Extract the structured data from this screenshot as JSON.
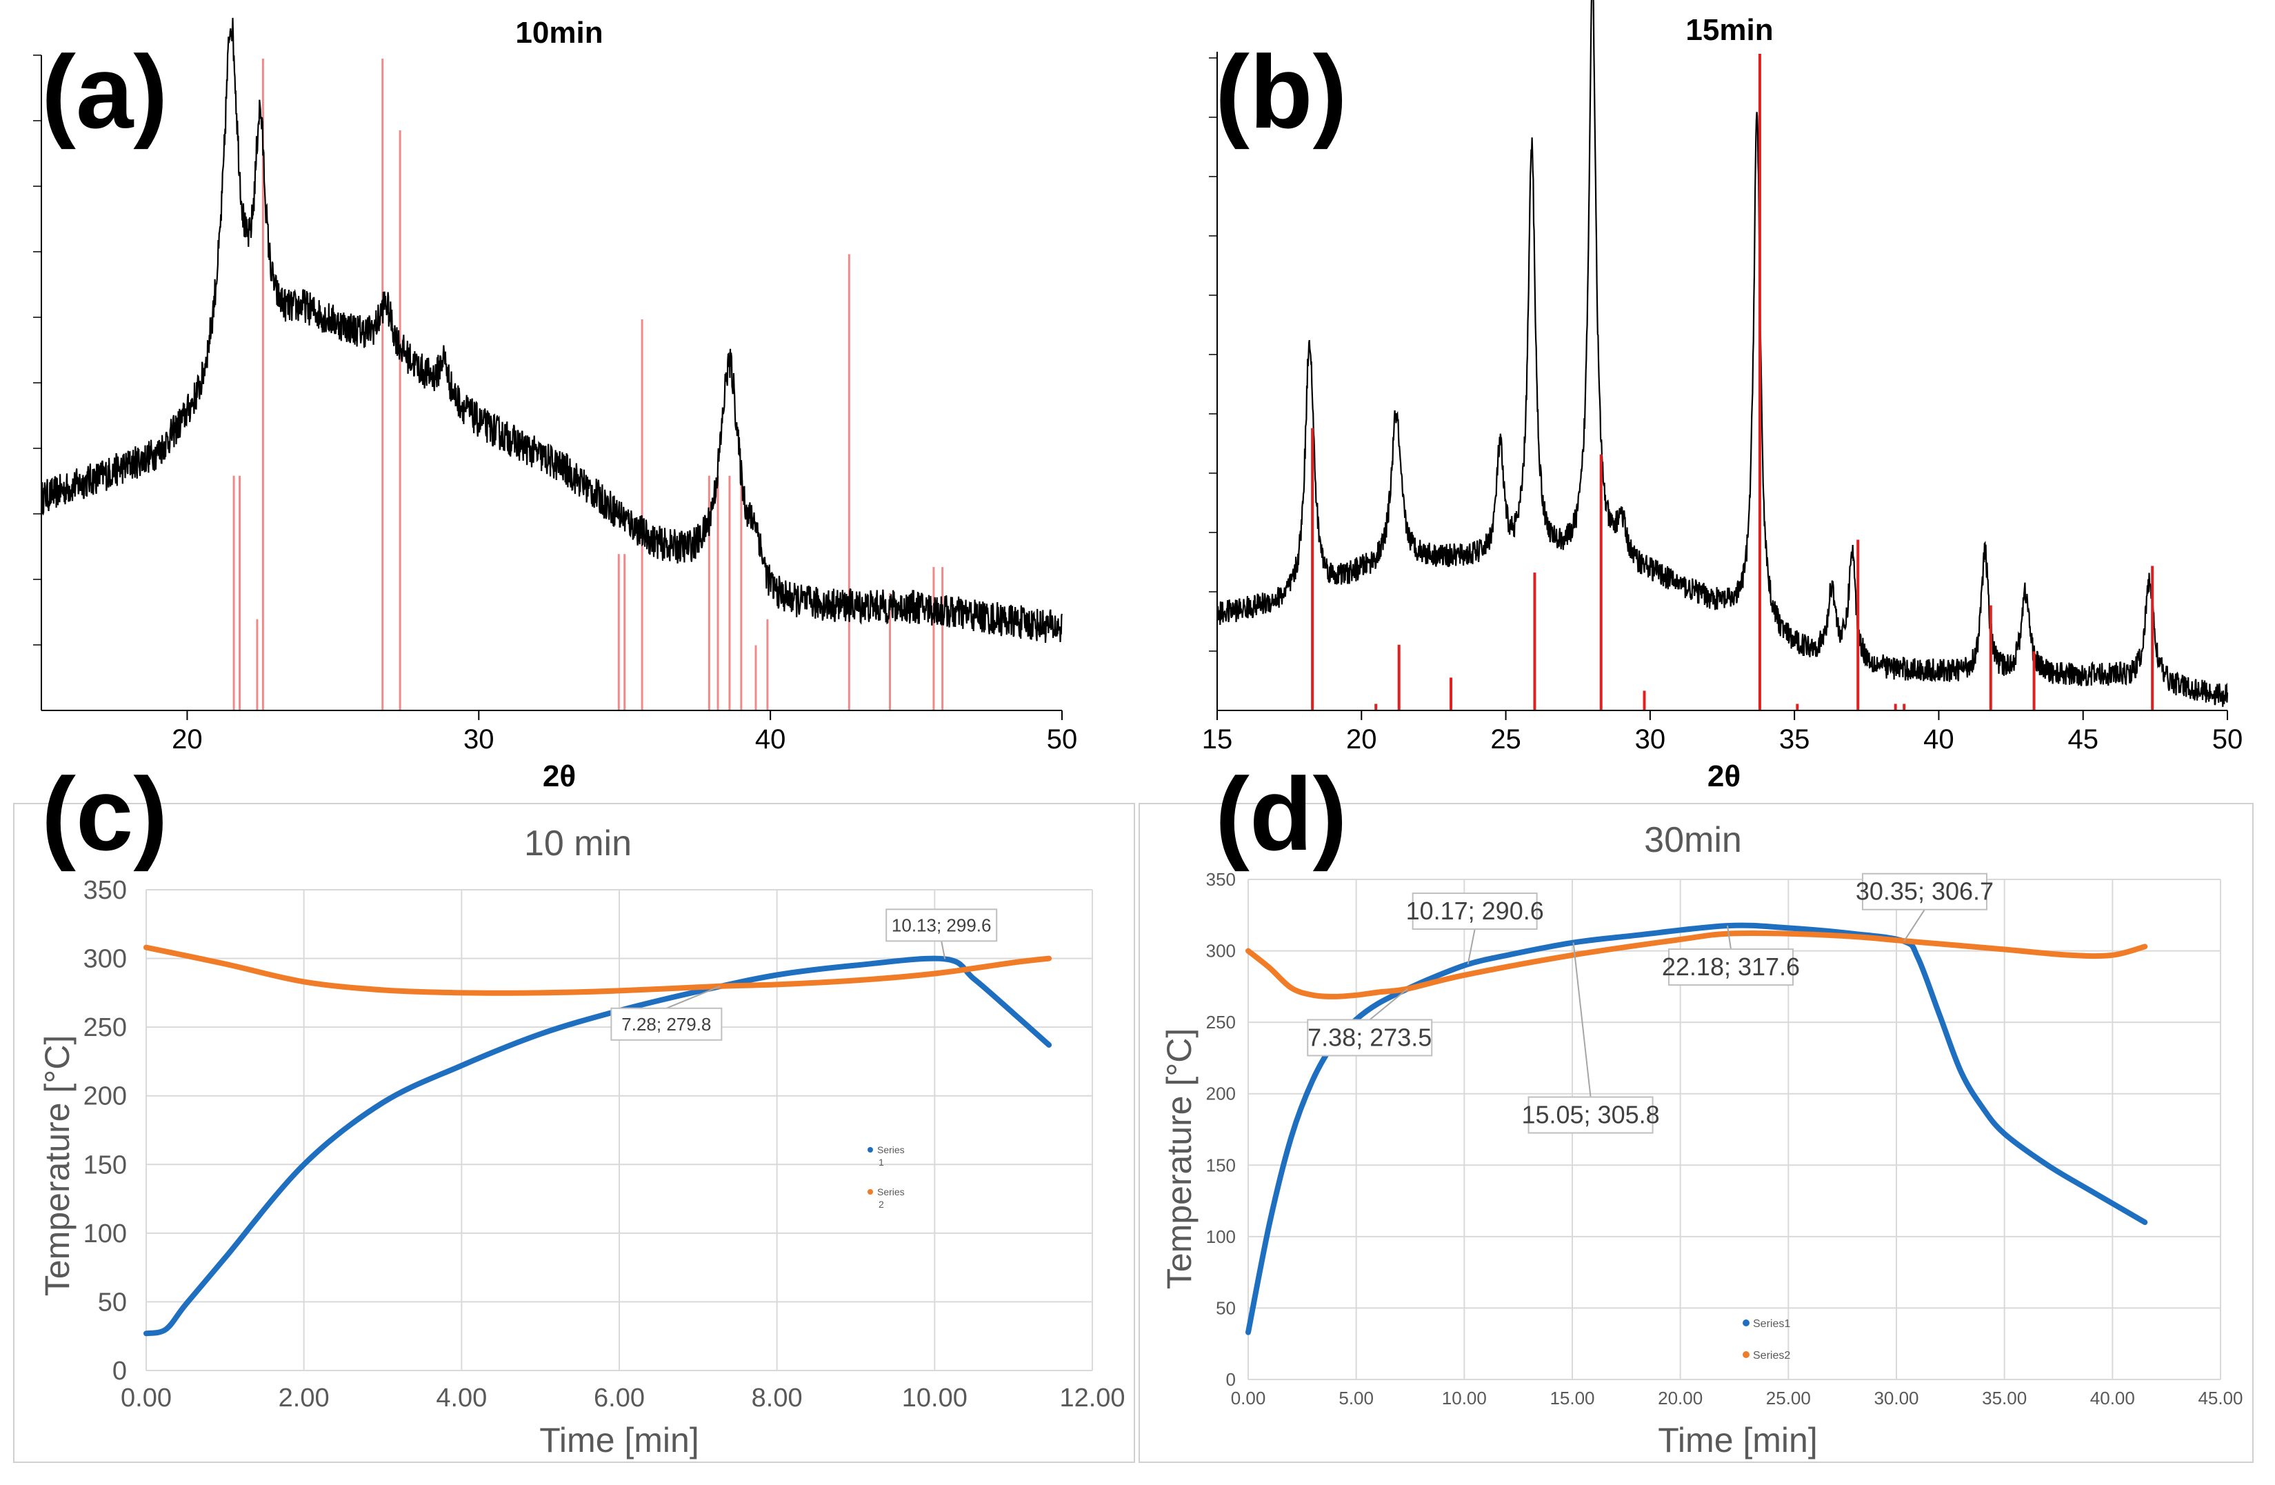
{
  "chart_data": [
    {
      "panel": "(a)",
      "type": "line",
      "title": "10min",
      "xlabel": "2θ",
      "ylabel": "",
      "xlim": [
        15,
        50
      ],
      "xticks": [
        20,
        30,
        40,
        50
      ],
      "pattern": {
        "baseline": [
          [
            15,
            0.31
          ],
          [
            19,
            0.37
          ],
          [
            20.5,
            0.44
          ],
          [
            21.0,
            0.5
          ],
          [
            24,
            0.58
          ],
          [
            27,
            0.53
          ],
          [
            30,
            0.42
          ],
          [
            33,
            0.35
          ],
          [
            36,
            0.24
          ],
          [
            37.5,
            0.21
          ],
          [
            40,
            0.15
          ],
          [
            45,
            0.15
          ],
          [
            50,
            0.12
          ]
        ],
        "peaks": [
          [
            21.5,
            0.48,
            0.3
          ],
          [
            22.5,
            0.3,
            0.22
          ],
          [
            26.8,
            0.06,
            0.25
          ],
          [
            28.8,
            0.05,
            0.18
          ],
          [
            38.6,
            0.32,
            0.4
          ],
          [
            39.5,
            0.06,
            0.25
          ]
        ]
      },
      "reference_lines": [
        [
          21.6,
          0.36
        ],
        [
          21.8,
          0.36
        ],
        [
          22.4,
          0.14
        ],
        [
          22.6,
          1.0
        ],
        [
          26.7,
          1.0
        ],
        [
          27.3,
          0.89
        ],
        [
          34.8,
          0.24
        ],
        [
          35.0,
          0.24
        ],
        [
          35.6,
          0.6
        ],
        [
          37.9,
          0.36
        ],
        [
          38.2,
          0.36
        ],
        [
          38.6,
          0.36
        ],
        [
          39.0,
          0.36
        ],
        [
          39.5,
          0.1
        ],
        [
          39.9,
          0.14
        ],
        [
          42.7,
          0.7
        ],
        [
          44.1,
          0.18
        ],
        [
          45.6,
          0.22
        ],
        [
          45.9,
          0.22
        ]
      ]
    },
    {
      "panel": "(b)",
      "type": "line",
      "title": "15min",
      "xlabel": "2θ",
      "ylabel": "",
      "xlim": [
        15,
        50
      ],
      "xticks": [
        15,
        20,
        25,
        30,
        35,
        40,
        45,
        50
      ],
      "pattern": {
        "baseline": [
          [
            15,
            0.14
          ],
          [
            18,
            0.16
          ],
          [
            20,
            0.2
          ],
          [
            22,
            0.22
          ],
          [
            25,
            0.22
          ],
          [
            28,
            0.22
          ],
          [
            30,
            0.2
          ],
          [
            33,
            0.14
          ],
          [
            35,
            0.09
          ],
          [
            38,
            0.06
          ],
          [
            42,
            0.05
          ],
          [
            46,
            0.05
          ],
          [
            50,
            0.02
          ]
        ],
        "peaks": [
          [
            18.2,
            0.38,
            0.18
          ],
          [
            21.2,
            0.22,
            0.2
          ],
          [
            24.8,
            0.16,
            0.15
          ],
          [
            25.9,
            0.6,
            0.15
          ],
          [
            28.0,
            0.85,
            0.15
          ],
          [
            29.0,
            0.06,
            0.2
          ],
          [
            33.7,
            0.75,
            0.14
          ],
          [
            36.3,
            0.1,
            0.15
          ],
          [
            37.0,
            0.16,
            0.14
          ],
          [
            41.6,
            0.18,
            0.15
          ],
          [
            43.0,
            0.12,
            0.18
          ],
          [
            47.3,
            0.15,
            0.18
          ]
        ]
      },
      "reference_lines": [
        [
          18.3,
          0.43
        ],
        [
          20.5,
          0.01
        ],
        [
          21.3,
          0.1
        ],
        [
          23.1,
          0.05
        ],
        [
          26.0,
          0.21
        ],
        [
          28.3,
          0.39
        ],
        [
          29.8,
          0.03
        ],
        [
          33.8,
          1.0
        ],
        [
          35.1,
          0.01
        ],
        [
          37.2,
          0.26
        ],
        [
          38.5,
          0.01
        ],
        [
          38.8,
          0.01
        ],
        [
          41.8,
          0.16
        ],
        [
          43.3,
          0.09
        ],
        [
          47.4,
          0.22
        ]
      ]
    },
    {
      "panel": "(c)",
      "type": "line",
      "title": "10 min",
      "xlabel": "Time [min]",
      "ylabel": "Temperature [°C]",
      "xlim": [
        0,
        12
      ],
      "ylim": [
        0,
        350
      ],
      "xticks": [
        "0.00",
        "2.00",
        "4.00",
        "6.00",
        "8.00",
        "10.00",
        "12.00"
      ],
      "yticks": [
        "0",
        "50",
        "100",
        "150",
        "200",
        "250",
        "300",
        "350"
      ],
      "series": [
        {
          "name": "Series 1",
          "color": "#1f6fc0",
          "points": [
            [
              0,
              27
            ],
            [
              0.25,
              30
            ],
            [
              0.5,
              48
            ],
            [
              1,
              82
            ],
            [
              2,
              150
            ],
            [
              3,
              195
            ],
            [
              4,
              222
            ],
            [
              5,
              245
            ],
            [
              6,
              262
            ],
            [
              7,
              276
            ],
            [
              8,
              288
            ],
            [
              9,
              295
            ],
            [
              10.13,
              299.6
            ],
            [
              10.5,
              285
            ],
            [
              11,
              260
            ],
            [
              11.45,
              237
            ]
          ]
        },
        {
          "name": "Series 2",
          "color": "#f07c28",
          "points": [
            [
              0,
              308
            ],
            [
              1,
              296
            ],
            [
              2,
              283
            ],
            [
              3,
              277
            ],
            [
              4,
              275
            ],
            [
              5,
              275
            ],
            [
              6,
              276.5
            ],
            [
              7.28,
              279.8
            ],
            [
              8,
              281
            ],
            [
              9,
              284
            ],
            [
              10,
              289
            ],
            [
              11,
              297
            ],
            [
              11.45,
              300
            ]
          ]
        }
      ],
      "annotations": [
        {
          "text": "10.13; 299.6",
          "x": 10.13,
          "y": 299.6
        },
        {
          "text": "7.28; 279.8",
          "x": 7.28,
          "y": 279.8
        }
      ],
      "legend": {
        "entries": [
          [
            "Series",
            "1"
          ],
          [
            "Series",
            "2"
          ]
        ]
      }
    },
    {
      "panel": "(d)",
      "type": "line",
      "title": "30min",
      "xlabel": "Time [min]",
      "ylabel": "Temperature [°C]",
      "xlim": [
        0,
        45
      ],
      "ylim": [
        0,
        350
      ],
      "xticks": [
        "0.00",
        "5.00",
        "10.00",
        "15.00",
        "20.00",
        "25.00",
        "30.00",
        "35.00",
        "40.00",
        "45.00"
      ],
      "yticks": [
        "0",
        "50",
        "100",
        "150",
        "200",
        "250",
        "300",
        "350"
      ],
      "series": [
        {
          "name": "Series1",
          "color": "#1f6fc0",
          "points": [
            [
              0,
              33
            ],
            [
              1,
              110
            ],
            [
              2,
              170
            ],
            [
              3,
              210
            ],
            [
              4,
              236
            ],
            [
              5,
              252
            ],
            [
              6,
              263
            ],
            [
              7.38,
              273.5
            ],
            [
              8.5,
              281
            ],
            [
              10.17,
              290.6
            ],
            [
              12,
              297
            ],
            [
              15.05,
              305.8
            ],
            [
              18,
              311
            ],
            [
              22.18,
              317.6
            ],
            [
              25,
              316
            ],
            [
              28,
              312
            ],
            [
              30.35,
              306.7
            ],
            [
              31,
              295
            ],
            [
              32,
              255
            ],
            [
              33,
              215
            ],
            [
              34,
              190
            ],
            [
              35,
              172
            ],
            [
              37,
              150
            ],
            [
              39,
              132
            ],
            [
              41.5,
              110
            ]
          ]
        },
        {
          "name": "Series2",
          "color": "#f07c28",
          "points": [
            [
              0,
              300
            ],
            [
              1,
              288
            ],
            [
              2,
              274
            ],
            [
              3,
              269
            ],
            [
              4,
              268
            ],
            [
              5,
              269
            ],
            [
              6,
              271
            ],
            [
              7.38,
              273.5
            ],
            [
              10,
              283
            ],
            [
              15,
              297
            ],
            [
              20,
              308
            ],
            [
              22.18,
              312
            ],
            [
              25,
              312
            ],
            [
              28,
              310
            ],
            [
              30.35,
              307
            ],
            [
              35,
              301
            ],
            [
              38,
              297
            ],
            [
              40,
              297
            ],
            [
              41.5,
              303
            ]
          ]
        }
      ],
      "annotations": [
        {
          "text": "10.17; 290.6",
          "x": 10.17,
          "y": 290.6
        },
        {
          "text": "30.35; 306.7",
          "x": 30.35,
          "y": 306.7
        },
        {
          "text": "22.18; 317.6",
          "x": 22.18,
          "y": 317.6
        },
        {
          "text": "7.38; 273.5",
          "x": 7.38,
          "y": 273.5
        },
        {
          "text": "15.05; 305.8",
          "x": 15.05,
          "y": 305.8
        }
      ],
      "legend": {
        "entries": [
          "Series1",
          "Series2"
        ]
      }
    }
  ],
  "panel_labels": [
    "(a)",
    "(b)",
    "(c)",
    "(d)"
  ],
  "colors": {
    "xrd_line": "#000000",
    "ref_a": "#f08a8a",
    "ref_b": "#e02020",
    "series1": "#1f6fc0",
    "series2": "#f07c28",
    "grid": "#d9d9d9",
    "axis_text": "#595959"
  }
}
